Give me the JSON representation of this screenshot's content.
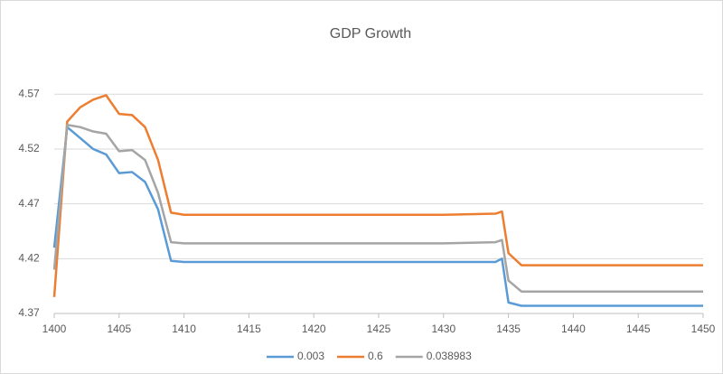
{
  "chart_data": {
    "type": "line",
    "title": "GDP Growth",
    "x": [
      1400,
      1401,
      1402,
      1403,
      1404,
      1405,
      1406,
      1407,
      1408,
      1409,
      1410,
      1420,
      1430,
      1434,
      1434.5,
      1435,
      1436,
      1440,
      1450
    ],
    "series": [
      {
        "name": "0.003",
        "color": "#5b9bd5",
        "values": [
          4.43,
          4.54,
          4.53,
          4.52,
          4.515,
          4.498,
          4.499,
          4.49,
          4.465,
          4.418,
          4.417,
          4.417,
          4.417,
          4.417,
          4.42,
          4.38,
          4.377,
          4.377,
          4.377
        ]
      },
      {
        "name": "0.6",
        "color": "#ed7d31",
        "values": [
          4.385,
          4.545,
          4.558,
          4.565,
          4.569,
          4.552,
          4.551,
          4.54,
          4.51,
          4.462,
          4.46,
          4.46,
          4.46,
          4.461,
          4.463,
          4.425,
          4.414,
          4.414,
          4.414
        ]
      },
      {
        "name": "0.038983",
        "color": "#a5a5a5",
        "values": [
          4.41,
          4.542,
          4.54,
          4.536,
          4.534,
          4.518,
          4.519,
          4.51,
          4.48,
          4.435,
          4.434,
          4.434,
          4.434,
          4.435,
          4.437,
          4.4,
          4.39,
          4.39,
          4.39
        ]
      }
    ],
    "xlim": [
      1400,
      1450
    ],
    "xticks": [
      1400,
      1405,
      1410,
      1415,
      1420,
      1425,
      1430,
      1435,
      1440,
      1445,
      1450
    ],
    "ylim": [
      4.37,
      4.59
    ],
    "yticks": [
      4.37,
      4.42,
      4.47,
      4.52,
      4.57
    ],
    "grid": true,
    "legend": "bottom"
  }
}
